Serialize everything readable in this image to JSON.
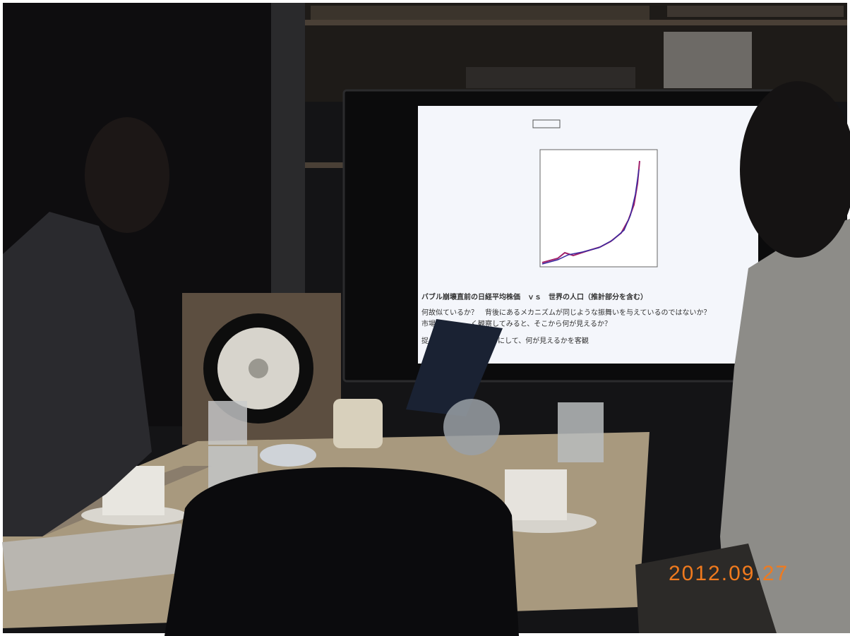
{
  "photo": {
    "date_stamp": "2012.09.27",
    "screen": {
      "heading": "バブル崩壊直前の日経平均株価　ｖｓ　世界の人口（推計部分を含む）",
      "lines": [
        "何故似ているか？　背後にあるメカニズムが同じような振舞いを与えているのではないか？",
        "市場の",
        "く観察してみると、そこから何が見えるか？",
        "捉",
        "わしにして、何が見えるかを客観"
      ]
    }
  }
}
